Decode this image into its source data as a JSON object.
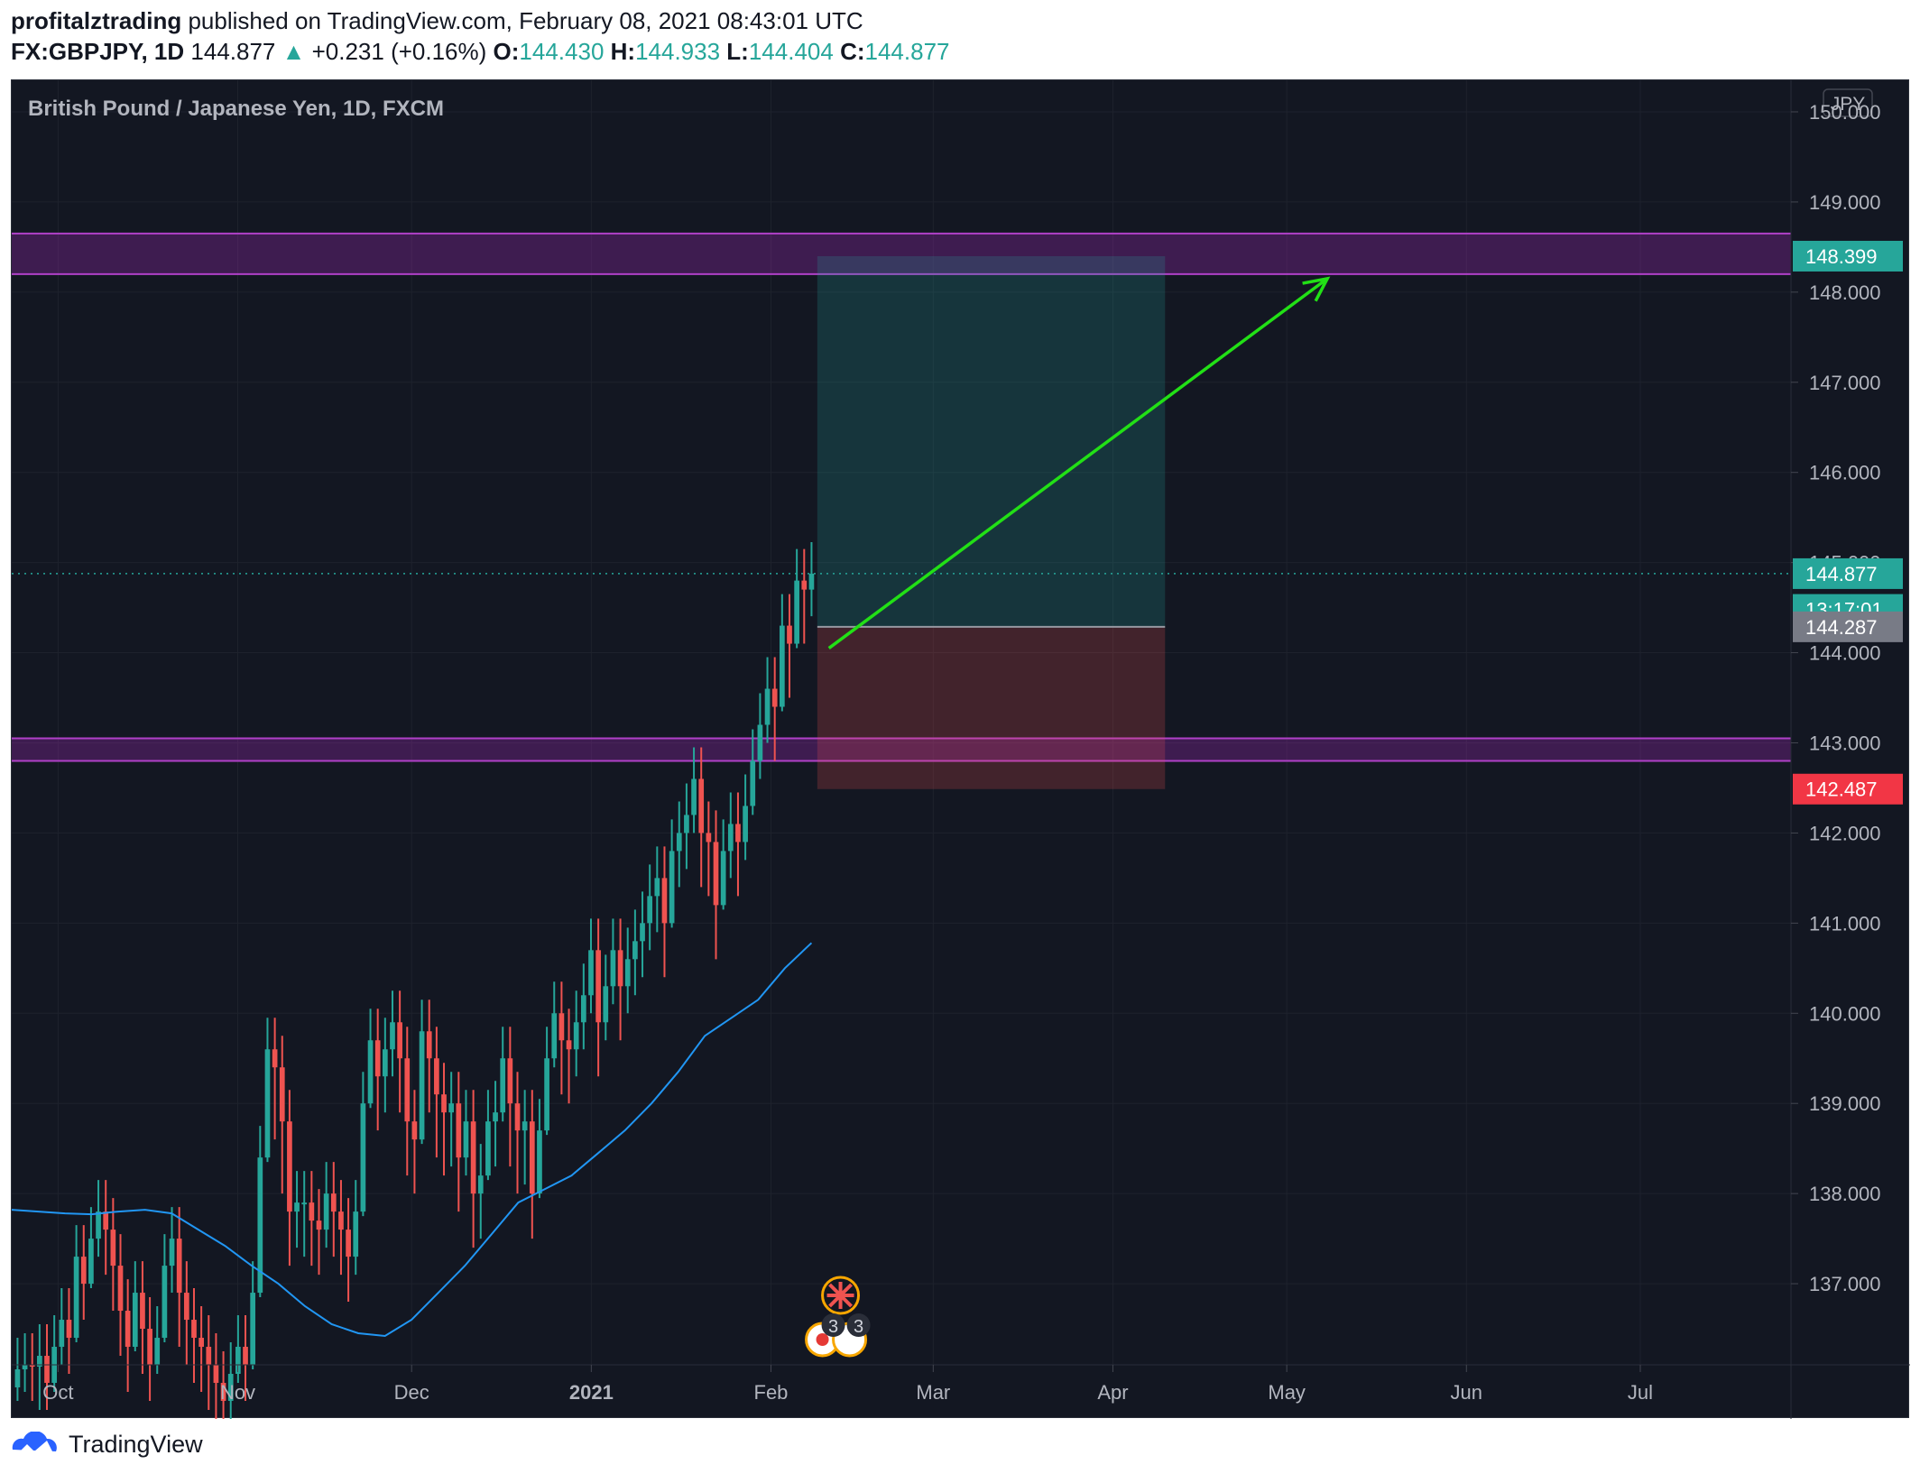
{
  "header": {
    "author": "profitalztrading",
    "published_text": "published on TradingView.com, February 08, 2021 08:43:01 UTC",
    "symbol": "FX:GBPJPY, 1D",
    "last": "144.877",
    "change": "+0.231 (+0.16%)",
    "open_label": "O:",
    "open": "144.430",
    "high_label": "H:",
    "high": "144.933",
    "low_label": "L:",
    "low": "144.404",
    "close_label": "C:",
    "close": "144.877"
  },
  "footer": {
    "brand": "TradingView"
  },
  "colors": {
    "background": "#131722",
    "grid": "#1e222d",
    "up": "#26a69a",
    "down": "#ef5350",
    "ma": "#2196f3",
    "zone": "#9c27b0",
    "arrow": "#22e016",
    "target_fill": "#26a69a",
    "stop_fill": "#ef5350"
  },
  "chart_data": {
    "type": "candlestick",
    "title": "British Pound / Japanese Yen, 1D, FXCM",
    "currency_label": "JPY",
    "ylim": [
      136.1,
      150.35
    ],
    "y_ticks": [
      "137.000",
      "138.000",
      "139.000",
      "140.000",
      "141.000",
      "142.000",
      "143.000",
      "144.000",
      "145.000",
      "146.000",
      "147.000",
      "148.000",
      "149.000",
      "150.000"
    ],
    "x_ticks": [
      {
        "label": "Oct",
        "date": "2020-10-01",
        "bold": false
      },
      {
        "label": "Nov",
        "date": "2020-11-01",
        "bold": false
      },
      {
        "label": "Dec",
        "date": "2020-12-01",
        "bold": false
      },
      {
        "label": "2021",
        "date": "2021-01-01",
        "bold": true
      },
      {
        "label": "Feb",
        "date": "2021-02-01",
        "bold": false
      },
      {
        "label": "Mar",
        "date": "2021-03-01",
        "bold": false
      },
      {
        "label": "Apr",
        "date": "2021-04-01",
        "bold": false
      },
      {
        "label": "May",
        "date": "2021-05-01",
        "bold": false
      },
      {
        "label": "Jun",
        "date": "2021-06-01",
        "bold": false
      },
      {
        "label": "Jul",
        "date": "2021-07-01",
        "bold": false
      }
    ],
    "x_range": [
      "2020-09-23",
      "2021-07-27"
    ],
    "closes": [
      136.05,
      136.1,
      136.08,
      136.2,
      135.9,
      136.3,
      136.6,
      136.4,
      137.3,
      137.0,
      137.5,
      137.8,
      137.6,
      137.2,
      136.7,
      136.3,
      136.9,
      136.5,
      136.1,
      136.4,
      137.2,
      137.5,
      136.9,
      136.6,
      136.4,
      136.3,
      136.1,
      135.9,
      135.7,
      136.0,
      136.3,
      136.1,
      136.9,
      138.4,
      139.6,
      139.4,
      138.8,
      137.8,
      137.9,
      137.9,
      137.7,
      137.6,
      138.0,
      137.8,
      137.6,
      137.3,
      137.8,
      139.0,
      139.7,
      139.3,
      139.6,
      139.9,
      139.5,
      138.8,
      138.6,
      139.8,
      139.5,
      139.1,
      138.9,
      139.0,
      138.4,
      138.8,
      138.0,
      138.2,
      138.8,
      138.9,
      139.5,
      139.0,
      138.7,
      138.8,
      138.0,
      138.7,
      139.5,
      140.0,
      139.7,
      139.6,
      139.9,
      140.2,
      140.7,
      139.9,
      140.3,
      140.7,
      140.3,
      140.6,
      140.8,
      141.0,
      141.3,
      141.5,
      141.0,
      141.8,
      142.0,
      142.2,
      142.6,
      142.0,
      141.9,
      141.2,
      141.8,
      142.1,
      141.9,
      142.3,
      142.8,
      143.2,
      143.6,
      143.4,
      144.3,
      144.1,
      144.8,
      144.7,
      144.877
    ],
    "extra_lows": [
      135.7,
      135.8,
      135.7,
      135.6,
      135.6,
      135.8,
      136.1,
      136.0,
      136.7,
      136.6,
      137.0,
      137.3,
      137.1,
      136.7,
      136.2,
      135.8,
      136.4,
      136.0,
      135.7,
      136.0,
      136.6,
      136.9,
      136.3,
      136.1,
      135.9,
      135.8,
      135.6,
      135.3,
      135.2,
      135.5,
      135.9,
      135.7,
      136.1,
      137.8,
      138.9,
      138.6,
      138.0,
      137.2,
      137.4,
      137.3,
      137.2,
      137.1,
      137.4,
      137.3,
      137.1,
      136.8,
      137.1,
      138.3,
      139.1,
      138.7,
      138.9,
      139.3,
      138.9,
      138.2,
      138.0,
      139.1,
      138.9,
      138.4,
      138.2,
      138.3,
      137.8,
      138.2,
      137.4,
      137.5,
      138.2,
      138.3,
      138.8,
      138.3,
      138.0,
      138.1,
      137.5,
      138.0,
      138.9,
      139.4,
      139.1,
      139.0,
      139.3,
      139.6,
      140.0,
      139.3,
      139.7,
      140.1,
      139.7,
      140.0,
      140.2,
      140.4,
      140.7,
      140.9,
      140.4,
      141.2,
      141.4,
      141.6,
      142.0,
      141.4,
      141.3,
      140.6,
      141.2,
      141.5,
      141.3,
      141.7,
      142.2,
      142.6,
      143.0,
      142.8,
      143.6,
      143.5,
      144.2,
      144.1,
      144.404
    ],
    "moving_average": {
      "start_value": 137.82,
      "values": [
        137.82,
        137.8,
        137.78,
        137.77,
        137.8,
        137.82,
        137.78,
        137.6,
        137.42,
        137.2,
        137.0,
        136.75,
        136.55,
        136.45,
        136.42,
        136.6,
        136.9,
        137.2,
        137.55,
        137.9,
        138.05,
        138.2,
        138.45,
        138.7,
        139.0,
        139.35,
        139.75,
        139.95,
        140.15,
        140.5,
        140.78
      ]
    },
    "zones": [
      {
        "from": 148.2,
        "to": 148.65
      },
      {
        "from": 142.8,
        "to": 143.05
      }
    ],
    "position": {
      "type": "long",
      "start_date": "2021-02-09",
      "end_date": "2021-04-10",
      "entry": 144.287,
      "target": 148.399,
      "stop": 142.487
    },
    "arrow": {
      "from": {
        "date": "2021-02-11",
        "price": 144.05
      },
      "to": {
        "date": "2021-05-08",
        "price": 148.15
      }
    },
    "price_labels": [
      {
        "value": "148.399",
        "price": 148.399,
        "bg": "#26a69a"
      },
      {
        "value": "144.877",
        "price": 144.877,
        "bg": "#26a69a"
      },
      {
        "value": "13:17:01",
        "price": 144.48,
        "bg": "#26a69a"
      },
      {
        "value": "144.287",
        "price": 144.287,
        "bg": "#787b86"
      },
      {
        "value": "142.487",
        "price": 142.487,
        "bg": "#f23645"
      }
    ],
    "events": [
      {
        "label": "3",
        "date": "2021-02-13"
      },
      {
        "label": "3",
        "date": "2021-02-17"
      }
    ]
  }
}
